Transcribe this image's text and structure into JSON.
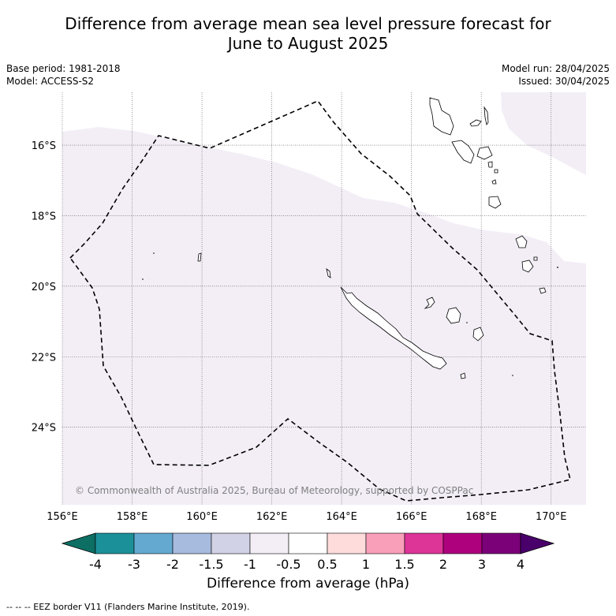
{
  "title_line1": "Difference from average mean sea level pressure forecast for",
  "title_line2": "June to August 2025",
  "meta_left": [
    "Base period: 1981-2018",
    "Model: ACCESS-S2"
  ],
  "meta_right": [
    "Model run: 28/04/2025",
    "Issued: 30/04/2025"
  ],
  "map": {
    "lon_range": [
      156,
      171
    ],
    "lat_range": [
      -26.2,
      -14.5
    ],
    "lon_ticks": [
      {
        "value": 156,
        "label": "156°E"
      },
      {
        "value": 158,
        "label": "158°E"
      },
      {
        "value": 160,
        "label": "160°E"
      },
      {
        "value": 162,
        "label": "162°E"
      },
      {
        "value": 164,
        "label": "164°E"
      },
      {
        "value": 166,
        "label": "166°E"
      },
      {
        "value": 168,
        "label": "168°E"
      },
      {
        "value": 170,
        "label": "170°E"
      }
    ],
    "lat_ticks": [
      {
        "value": -16,
        "label": "16°S"
      },
      {
        "value": -18,
        "label": "18°S"
      },
      {
        "value": -20,
        "label": "20°S"
      },
      {
        "value": -22,
        "label": "22°S"
      },
      {
        "value": -24,
        "label": "24°S"
      }
    ],
    "credit": "© Commonwealth of Australia 2025, Bureau of Meteorology, supported by COSPPac",
    "shaded_category": "-1 to -0.5",
    "shade_color": "#f3eef6",
    "eez_color": "#000000"
  },
  "colorbar": {
    "colors": [
      "#0d6e64",
      "#1b9099",
      "#64a9d0",
      "#a6bbdd",
      "#d2d2e6",
      "#f3eef6",
      "#ffffff",
      "#fedcdb",
      "#f99fb9",
      "#dd3497",
      "#ad017e",
      "#7a0177",
      "#49006a"
    ],
    "ticks": [
      "-4",
      "-3",
      "-2",
      "-1.5",
      "-1",
      "-0.5",
      "0.5",
      "1",
      "1.5",
      "2",
      "3",
      "4"
    ],
    "label": "Difference from average (hPa)"
  },
  "footnote": "--  --  -- EEZ border V11 (Flanders Marine Institute, 2019)."
}
